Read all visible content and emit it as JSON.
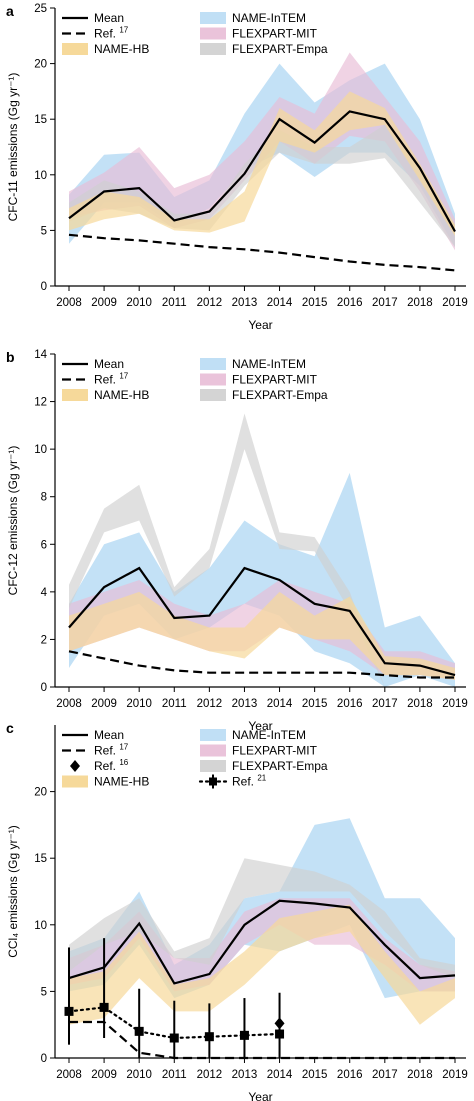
{
  "chart_data": [
    {
      "type": "line",
      "panel": "a",
      "xlabel": "Year",
      "ylabel": "CFC-11 emissions (Gg yr⁻¹)",
      "x": [
        2008,
        2009,
        2010,
        2011,
        2012,
        2013,
        2014,
        2015,
        2016,
        2017,
        2018,
        2019
      ],
      "ylim": [
        0,
        25
      ],
      "yticks": [
        0,
        5,
        10,
        15,
        20,
        25
      ],
      "colors": {
        "name_intem": "#b9dcf4",
        "flexpart_mit": "#e8bcd6",
        "flexpart_empa": "#cfcfcf",
        "name_hb": "#f6d99a"
      },
      "legend": {
        "mean": "Mean",
        "ref": "Ref.",
        "ref_sup": "17",
        "name_hb": "NAME-HB",
        "name_intem": "NAME-InTEM",
        "flexpart_mit": "FLEXPART-MIT",
        "flexpart_empa": "FLEXPART-Empa"
      },
      "mean": [
        6.1,
        8.5,
        8.8,
        5.9,
        6.7,
        10.1,
        15.0,
        12.9,
        15.7,
        15.0,
        10.6,
        4.9
      ],
      "ref": [
        4.6,
        4.3,
        4.1,
        3.8,
        3.5,
        3.3,
        3.0,
        2.6,
        2.2,
        1.9,
        1.7,
        1.4
      ],
      "bands": {
        "name_intem": {
          "lower": [
            3.8,
            7.5,
            7.5,
            5.5,
            7.0,
            10.5,
            12.0,
            9.8,
            12.0,
            12.0,
            9.0,
            3.5
          ],
          "upper": [
            8.2,
            11.8,
            12.0,
            8.0,
            9.5,
            15.5,
            20.0,
            16.5,
            18.5,
            20.0,
            15.0,
            6.5
          ]
        },
        "flexpart_mit": {
          "lower": [
            6.2,
            6.8,
            7.2,
            5.2,
            6.0,
            9.5,
            13.0,
            11.0,
            13.5,
            13.0,
            8.5,
            3.2
          ],
          "upper": [
            8.5,
            10.2,
            12.5,
            8.8,
            10.0,
            13.0,
            17.0,
            15.5,
            21.0,
            17.0,
            13.0,
            6.0
          ]
        },
        "flexpart_empa": {
          "lower": [
            5.8,
            7.0,
            6.5,
            5.2,
            5.0,
            9.0,
            12.0,
            11.0,
            11.0,
            11.5,
            7.5,
            3.5
          ],
          "upper": [
            7.5,
            9.5,
            8.5,
            6.5,
            6.5,
            11.0,
            14.0,
            12.5,
            12.5,
            14.5,
            10.5,
            5.5
          ]
        },
        "name_hb": {
          "lower": [
            5.0,
            6.0,
            6.5,
            5.0,
            4.8,
            5.8,
            13.0,
            12.0,
            14.0,
            14.5,
            9.5,
            4.5
          ],
          "upper": [
            7.0,
            8.5,
            8.0,
            6.0,
            6.0,
            8.5,
            16.0,
            14.0,
            17.5,
            16.0,
            11.0,
            5.5
          ]
        }
      }
    },
    {
      "type": "line",
      "panel": "b",
      "xlabel": "Year",
      "ylabel": "CFC-12 emissions (Gg yr⁻¹)",
      "x": [
        2008,
        2009,
        2010,
        2011,
        2012,
        2013,
        2014,
        2015,
        2016,
        2017,
        2018,
        2019
      ],
      "ylim": [
        0,
        14
      ],
      "yticks": [
        0,
        2,
        4,
        6,
        8,
        10,
        12,
        14
      ],
      "colors": {
        "name_intem": "#b9dcf4",
        "flexpart_mit": "#e8bcd6",
        "flexpart_empa": "#cfcfcf",
        "name_hb": "#f6d99a"
      },
      "legend": {
        "mean": "Mean",
        "ref": "Ref.",
        "ref_sup": "17",
        "name_hb": "NAME-HB",
        "name_intem": "NAME-InTEM",
        "flexpart_mit": "FLEXPART-MIT",
        "flexpart_empa": "FLEXPART-Empa"
      },
      "mean": [
        2.5,
        4.2,
        5.0,
        2.9,
        3.0,
        5.0,
        4.5,
        3.5,
        3.2,
        1.0,
        0.9,
        0.5
      ],
      "ref": [
        1.5,
        1.2,
        0.9,
        0.7,
        0.6,
        0.6,
        0.6,
        0.6,
        0.6,
        0.5,
        0.4,
        0.4
      ],
      "bands": {
        "name_intem": {
          "lower": [
            0.8,
            3.0,
            3.5,
            2.0,
            2.5,
            3.5,
            3.0,
            1.5,
            1.0,
            0.0,
            0.5,
            0.0
          ],
          "upper": [
            3.5,
            6.0,
            6.5,
            4.0,
            5.0,
            7.0,
            6.0,
            5.5,
            9.0,
            2.5,
            3.0,
            1.0
          ]
        },
        "flexpart_mit": {
          "lower": [
            1.5,
            2.0,
            2.5,
            2.0,
            1.5,
            1.5,
            2.5,
            2.0,
            1.5,
            0.5,
            0.5,
            0.3
          ],
          "upper": [
            3.5,
            4.0,
            4.5,
            3.5,
            3.0,
            3.5,
            4.5,
            4.0,
            3.5,
            1.5,
            1.5,
            1.0
          ]
        },
        "flexpart_empa": {
          "lower": [
            3.3,
            6.5,
            7.0,
            3.8,
            5.0,
            10.0,
            5.8,
            5.7,
            3.2,
            0.0,
            0.0,
            0.0
          ],
          "upper": [
            4.3,
            7.5,
            8.5,
            4.2,
            5.8,
            11.5,
            6.5,
            6.3,
            4.0,
            0.0,
            0.0,
            0.0
          ]
        },
        "name_hb": {
          "lower": [
            1.5,
            2.0,
            2.5,
            2.0,
            1.5,
            1.2,
            2.5,
            2.0,
            2.0,
            0.5,
            0.5,
            0.3
          ],
          "upper": [
            3.0,
            3.5,
            4.0,
            3.0,
            2.5,
            2.5,
            4.0,
            3.0,
            3.8,
            1.3,
            1.2,
            0.8
          ]
        }
      }
    },
    {
      "type": "line",
      "panel": "c",
      "xlabel": "Year",
      "ylabel": "CCl₄ emissions (Gg yr⁻¹)",
      "x": [
        2008,
        2009,
        2010,
        2011,
        2012,
        2013,
        2014,
        2015,
        2016,
        2017,
        2018,
        2019
      ],
      "ylim": [
        0,
        25
      ],
      "yticks": [
        0,
        5,
        10,
        15,
        20
      ],
      "colors": {
        "name_intem": "#b9dcf4",
        "flexpart_mit": "#e8bcd6",
        "flexpart_empa": "#cfcfcf",
        "name_hb": "#f6d99a"
      },
      "legend": {
        "mean": "Mean",
        "ref": "Ref.",
        "ref_sup": "17",
        "ref16": "Ref.",
        "ref16_sup": "16",
        "name_hb": "NAME-HB",
        "name_intem": "NAME-InTEM",
        "flexpart_mit": "FLEXPART-MIT",
        "flexpart_empa": "FLEXPART-Empa",
        "ref21": "Ref.",
        "ref21_sup": "21"
      },
      "mean": [
        6.0,
        6.8,
        10.1,
        5.6,
        6.3,
        10.0,
        11.8,
        11.6,
        11.3,
        8.5,
        6.0,
        6.2
      ],
      "ref": [
        2.7,
        2.7,
        0.4,
        0.0,
        0.0,
        0.0,
        0.0,
        0.0,
        0.0,
        0.0,
        0.0,
        0.0
      ],
      "ref16": {
        "x": 2014,
        "y": 2.6
      },
      "ref21": {
        "x": [
          2008,
          2009,
          2010,
          2011,
          2012,
          2013,
          2014
        ],
        "y": [
          3.5,
          3.8,
          2.0,
          1.5,
          1.6,
          1.7,
          1.8
        ],
        "lower": [
          1.0,
          1.5,
          0.0,
          0.0,
          0.0,
          0.0,
          0.0
        ],
        "upper": [
          8.3,
          9.0,
          5.2,
          4.3,
          4.1,
          4.5,
          4.9
        ]
      },
      "bands": {
        "name_intem": {
          "lower": [
            5.0,
            5.5,
            8.5,
            4.5,
            5.5,
            8.5,
            8.0,
            9.0,
            10.0,
            4.5,
            5.0,
            5.0
          ],
          "upper": [
            8.0,
            9.0,
            12.5,
            7.0,
            8.5,
            12.0,
            12.5,
            17.5,
            18.0,
            12.0,
            12.0,
            9.0
          ]
        },
        "flexpart_mit": {
          "lower": [
            5.5,
            6.0,
            9.0,
            5.0,
            5.5,
            8.5,
            10.0,
            8.5,
            8.5,
            7.0,
            5.0,
            5.0
          ],
          "upper": [
            7.5,
            8.5,
            11.0,
            7.5,
            7.5,
            11.0,
            12.0,
            12.0,
            12.0,
            9.0,
            7.0,
            6.5
          ]
        },
        "flexpart_empa": {
          "lower": [
            6.5,
            8.5,
            9.5,
            7.5,
            7.0,
            12.0,
            12.5,
            12.5,
            12.5,
            9.5,
            7.0,
            6.0
          ],
          "upper": [
            8.5,
            10.5,
            12.0,
            8.0,
            9.0,
            15.0,
            14.5,
            14.0,
            13.0,
            11.0,
            7.5,
            7.0
          ]
        },
        "name_hb": {
          "lower": [
            2.5,
            3.0,
            6.0,
            3.5,
            3.5,
            5.5,
            8.0,
            9.0,
            9.5,
            6.0,
            2.5,
            4.5
          ],
          "upper": [
            6.0,
            6.5,
            9.5,
            5.5,
            6.0,
            8.0,
            10.5,
            11.0,
            11.5,
            8.0,
            5.0,
            6.0
          ]
        }
      }
    }
  ]
}
